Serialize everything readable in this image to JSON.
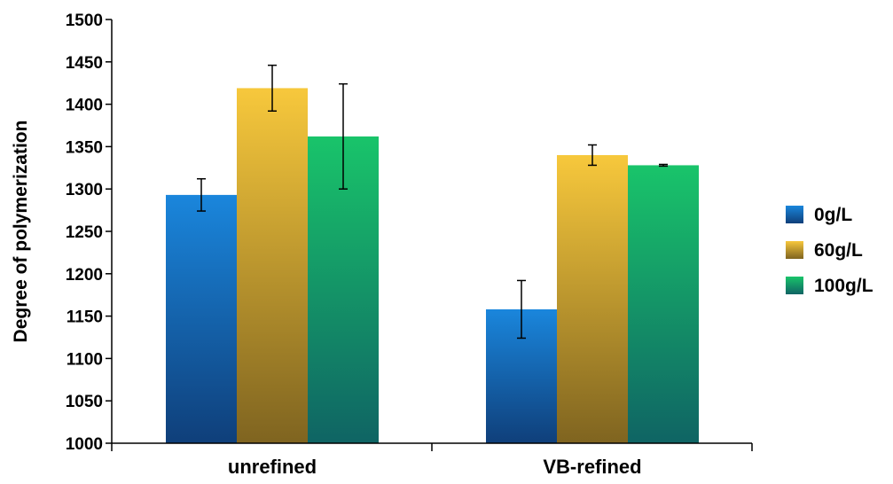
{
  "chart_data": {
    "type": "bar",
    "title": "",
    "xlabel": "",
    "ylabel": "Degree of polymerization",
    "ylim": [
      1000,
      1500
    ],
    "yticks": [
      1000,
      1050,
      1100,
      1150,
      1200,
      1250,
      1300,
      1350,
      1400,
      1450,
      1500
    ],
    "categories": [
      "unrefined",
      "VB-refined"
    ],
    "series": [
      {
        "name": "0g/L",
        "values": [
          1293,
          1158
        ],
        "errors": [
          19,
          34
        ],
        "color_top": "#1a86dc",
        "color_bottom": "#0f3f7a"
      },
      {
        "name": "60g/L",
        "values": [
          1419,
          1340
        ],
        "errors": [
          27,
          12
        ],
        "color_top": "#f7c83c",
        "color_bottom": "#7f6420"
      },
      {
        "name": "100g/L",
        "values": [
          1362,
          1328
        ],
        "errors": [
          62,
          1
        ],
        "color_top": "#19c46a",
        "color_bottom": "#0f6464"
      }
    ],
    "grid": false,
    "legend_position": "right"
  }
}
